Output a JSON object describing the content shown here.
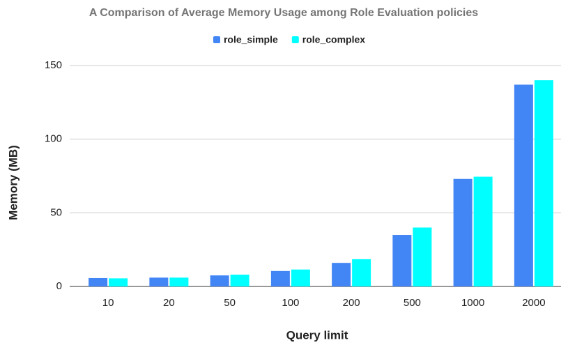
{
  "chart_data": {
    "type": "bar",
    "title": "A Comparison of Average Memory Usage among Role Evaluation policies",
    "x_label": "Query limit",
    "y_label": "Memory (MB)",
    "categories": [
      "10",
      "20",
      "50",
      "100",
      "200",
      "500",
      "1000",
      "2000"
    ],
    "series": [
      {
        "name": "role_simple",
        "color": "#4285f4",
        "values": [
          5.7,
          6,
          7.5,
          10.5,
          16,
          35,
          73,
          137
        ]
      },
      {
        "name": "role_complex",
        "color": "#00ffff",
        "values": [
          5.5,
          6,
          8,
          11.5,
          18.5,
          40,
          74.5,
          140
        ]
      }
    ],
    "ylim": [
      0,
      150
    ],
    "yticks": [
      0,
      50,
      100,
      150
    ],
    "grid": true,
    "legend": "top"
  }
}
